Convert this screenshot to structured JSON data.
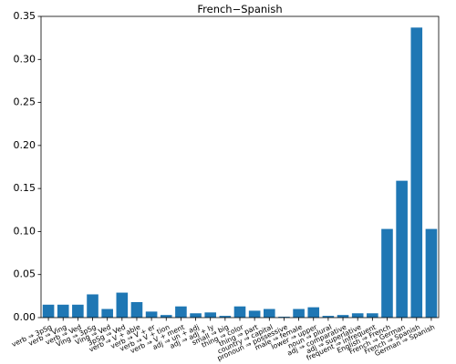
{
  "chart_data": {
    "type": "bar",
    "title": "French−Spanish",
    "xlabel": "",
    "ylabel": "",
    "ylim": [
      0,
      0.35
    ],
    "yticks": [
      "0.00",
      "0.05",
      "0.10",
      "0.15",
      "0.20",
      "0.25",
      "0.30",
      "0.35"
    ],
    "grid": false,
    "bar_color": "#1f77b4",
    "categories": [
      "verb ⇒ 3pSg",
      "verb ⇒ Ving",
      "verb ⇒ Ved",
      "Ving ⇒ 3pSg",
      "Ving ⇒ Ved",
      "3pSg ⇒ Ved",
      "verb ⇒ V + able",
      "verb ⇒ V + er",
      "verb ⇒ V + tion",
      "verb ⇒ V + ment",
      "adj ⇒ un + adj",
      "adj ⇒ adj + ly",
      "small ⇒ big",
      "thing ⇒ color",
      "thing ⇒ part",
      "country ⇒ capital",
      "pronoun ⇒ possessive",
      "male ⇒ female",
      "lower ⇒ upper",
      "noun ⇒ plural",
      "adj ⇒ comparative",
      "adj ⇒ superlative",
      "frequent ⇒ infrequent",
      "English ⇒ French",
      "French ⇒ German",
      "French ⇒ Spanish",
      "German ⇒ Spanish"
    ],
    "values": [
      0.015,
      0.015,
      0.015,
      0.027,
      0.01,
      0.029,
      0.018,
      0.007,
      0.003,
      0.013,
      0.005,
      0.006,
      0.002,
      0.013,
      0.008,
      0.01,
      0.001,
      0.01,
      0.012,
      0.002,
      0.003,
      0.005,
      0.005,
      0.103,
      0.159,
      0.337,
      0.103
    ]
  }
}
